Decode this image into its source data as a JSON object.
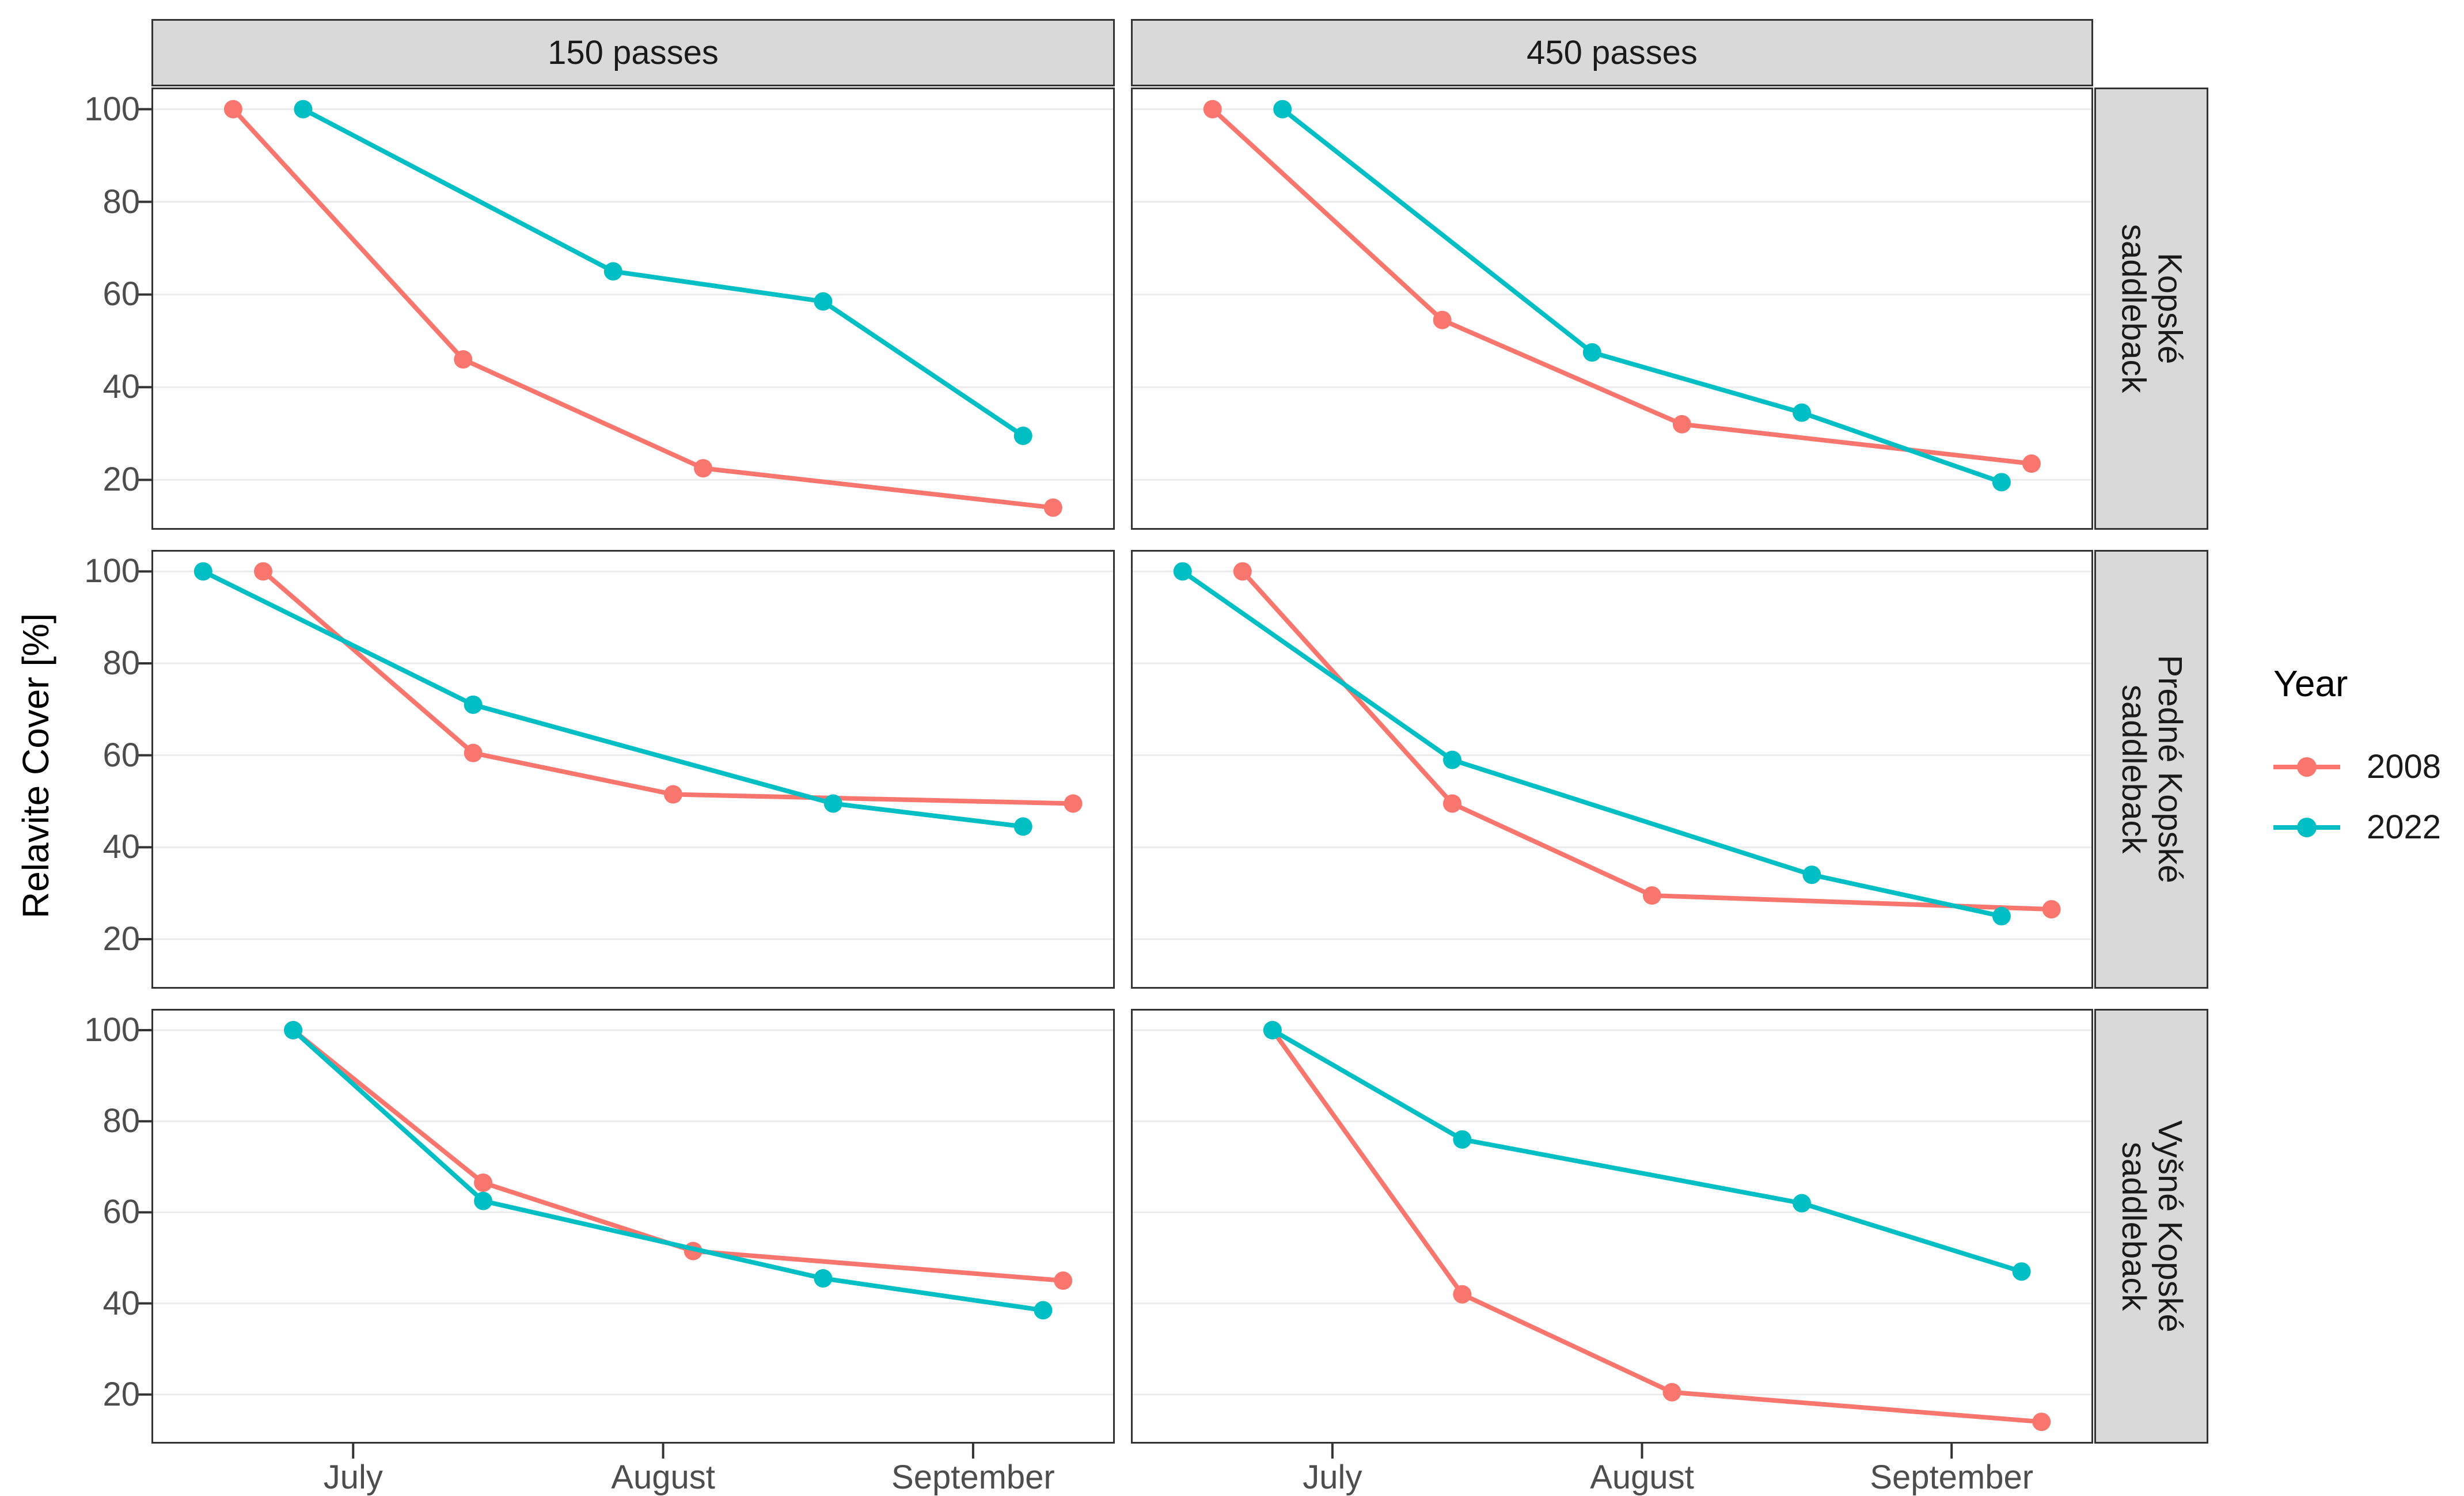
{
  "figure": {
    "y_axis_title": "Relavite Cover [%]",
    "legend": {
      "title": "Year",
      "items": [
        {
          "label": "2008",
          "color": "#F8766D"
        },
        {
          "label": "2022",
          "color": "#00BFC4"
        }
      ]
    },
    "col_facets": [
      {
        "label": "150 passes"
      },
      {
        "label": "450 passes"
      }
    ],
    "row_facets": [
      {
        "label": "Kopské saddleback",
        "lines": [
          "Kopské",
          "saddleback"
        ]
      },
      {
        "label": "Predné Kopské saddleback",
        "lines": [
          "Predné Kopské",
          "saddleback"
        ]
      },
      {
        "label": "Vyšné Kopské saddleback",
        "lines": [
          "Vyšné Kopské",
          "saddleback"
        ]
      }
    ]
  },
  "chart_data": {
    "type": "line",
    "title": "",
    "xlabel": "",
    "ylabel": "Relavite Cover [%]",
    "grid": "horizontal major gridlines only",
    "legend_position": "right-middle",
    "y_axis": {
      "ticks": [
        20,
        40,
        60,
        80,
        100
      ],
      "domain": [
        9.6,
        104.3
      ]
    },
    "x_axis": {
      "tick_labels": [
        "July",
        "August",
        "September"
      ],
      "tick_days": [
        20,
        51,
        82
      ],
      "domain_days": [
        0,
        96
      ],
      "note": "day 0 = Jun 11, day 96 = Sep 15"
    },
    "series_colors": {
      "2008": "#F8766D",
      "2022": "#00BFC4"
    },
    "facets": [
      {
        "row": "Kopské saddleback",
        "col": "150 passes",
        "series": [
          {
            "name": "2008",
            "color": "#F8766D",
            "points": [
              {
                "date": "Jun 19",
                "day": 8,
                "value": 100
              },
              {
                "date": "Jul 12",
                "day": 31,
                "value": 46
              },
              {
                "date": "Aug 5",
                "day": 55,
                "value": 22.5
              },
              {
                "date": "Sep 9",
                "day": 90,
                "value": 14
              }
            ]
          },
          {
            "name": "2022",
            "color": "#00BFC4",
            "points": [
              {
                "date": "Jun 26",
                "day": 15,
                "value": 100
              },
              {
                "date": "Jul 27",
                "day": 46,
                "value": 65
              },
              {
                "date": "Aug 17",
                "day": 67,
                "value": 58.5
              },
              {
                "date": "Sep 6",
                "day": 87,
                "value": 29.5
              }
            ]
          }
        ]
      },
      {
        "row": "Kopské saddleback",
        "col": "450 passes",
        "series": [
          {
            "name": "2008",
            "color": "#F8766D",
            "points": [
              {
                "date": "Jun 19",
                "day": 8,
                "value": 100
              },
              {
                "date": "Jul 12",
                "day": 31,
                "value": 54.5
              },
              {
                "date": "Aug 5",
                "day": 55,
                "value": 32
              },
              {
                "date": "Sep 9",
                "day": 90,
                "value": 23.5
              }
            ]
          },
          {
            "name": "2022",
            "color": "#00BFC4",
            "points": [
              {
                "date": "Jun 26",
                "day": 15,
                "value": 100
              },
              {
                "date": "Jul 27",
                "day": 46,
                "value": 47.5
              },
              {
                "date": "Aug 17",
                "day": 67,
                "value": 34.5
              },
              {
                "date": "Sep 6",
                "day": 87,
                "value": 19.5
              }
            ]
          }
        ]
      },
      {
        "row": "Predné Kopské saddleback",
        "col": "150 passes",
        "series": [
          {
            "name": "2008",
            "color": "#F8766D",
            "points": [
              {
                "date": "Jun 22",
                "day": 11,
                "value": 100
              },
              {
                "date": "Jul 13",
                "day": 32,
                "value": 60.5
              },
              {
                "date": "Aug 2",
                "day": 52,
                "value": 51.5
              },
              {
                "date": "Sep 11",
                "day": 92,
                "value": 49.5
              }
            ]
          },
          {
            "name": "2022",
            "color": "#00BFC4",
            "points": [
              {
                "date": "Jun 16",
                "day": 5,
                "value": 100
              },
              {
                "date": "Jul 13",
                "day": 32,
                "value": 71
              },
              {
                "date": "Aug 18",
                "day": 68,
                "value": 49.5
              },
              {
                "date": "Sep 6",
                "day": 87,
                "value": 44.5
              }
            ]
          }
        ]
      },
      {
        "row": "Predné Kopské saddleback",
        "col": "450 passes",
        "series": [
          {
            "name": "2008",
            "color": "#F8766D",
            "points": [
              {
                "date": "Jun 22",
                "day": 11,
                "value": 100
              },
              {
                "date": "Jul 13",
                "day": 32,
                "value": 49.5
              },
              {
                "date": "Aug 2",
                "day": 52,
                "value": 29.5
              },
              {
                "date": "Sep 11",
                "day": 92,
                "value": 26.5
              }
            ]
          },
          {
            "name": "2022",
            "color": "#00BFC4",
            "points": [
              {
                "date": "Jun 16",
                "day": 5,
                "value": 100
              },
              {
                "date": "Jul 13",
                "day": 32,
                "value": 59
              },
              {
                "date": "Aug 18",
                "day": 68,
                "value": 34
              },
              {
                "date": "Sep 6",
                "day": 87,
                "value": 25
              }
            ]
          }
        ]
      },
      {
        "row": "Vyšné Kopské saddleback",
        "col": "150 passes",
        "series": [
          {
            "name": "2008",
            "color": "#F8766D",
            "points": [
              {
                "date": "Jun 25",
                "day": 14,
                "value": 100
              },
              {
                "date": "Jul 14",
                "day": 33,
                "value": 66.5
              },
              {
                "date": "Aug 4",
                "day": 54,
                "value": 51.5
              },
              {
                "date": "Sep 10",
                "day": 91,
                "value": 45
              }
            ]
          },
          {
            "name": "2022",
            "color": "#00BFC4",
            "points": [
              {
                "date": "Jun 25",
                "day": 14,
                "value": 100
              },
              {
                "date": "Jul 14",
                "day": 33,
                "value": 62.5
              },
              {
                "date": "Aug 17",
                "day": 67,
                "value": 45.5
              },
              {
                "date": "Sep 8",
                "day": 89,
                "value": 38.5
              }
            ]
          }
        ]
      },
      {
        "row": "Vyšné Kopské saddleback",
        "col": "450 passes",
        "series": [
          {
            "name": "2008",
            "color": "#F8766D",
            "points": [
              {
                "date": "Jun 25",
                "day": 14,
                "value": 100
              },
              {
                "date": "Jul 14",
                "day": 33,
                "value": 42
              },
              {
                "date": "Aug 4",
                "day": 54,
                "value": 20.5
              },
              {
                "date": "Sep 10",
                "day": 91,
                "value": 14
              }
            ]
          },
          {
            "name": "2022",
            "color": "#00BFC4",
            "points": [
              {
                "date": "Jun 25",
                "day": 14,
                "value": 100
              },
              {
                "date": "Jul 14",
                "day": 33,
                "value": 76
              },
              {
                "date": "Aug 17",
                "day": 67,
                "value": 62
              },
              {
                "date": "Sep 8",
                "day": 89,
                "value": 47
              }
            ]
          }
        ]
      }
    ]
  }
}
